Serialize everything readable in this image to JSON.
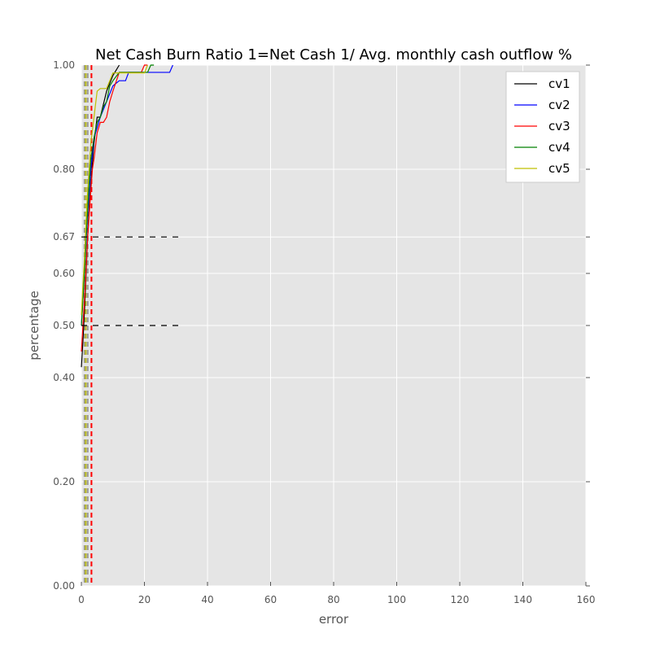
{
  "chart_data": {
    "type": "line",
    "title": "Net Cash Burn Ratio 1=Net Cash 1/ Avg. monthly cash outflow %",
    "xlabel": "error",
    "ylabel": "percentage",
    "xlim": [
      0,
      160
    ],
    "ylim": [
      0,
      1
    ],
    "xticks": [
      0,
      20,
      40,
      60,
      80,
      100,
      120,
      140,
      160
    ],
    "xtick_labels": [
      "0",
      "20",
      "40",
      "60",
      "80",
      "100",
      "120",
      "140",
      "160"
    ],
    "yticks": [
      0,
      0.2,
      0.4,
      0.5,
      0.6,
      0.67,
      0.8,
      1.0
    ],
    "ytick_labels": [
      "0.00",
      "0.20",
      "0.40",
      "0.50",
      "0.60",
      "0.67",
      "0.80",
      "1.00"
    ],
    "grid": true,
    "legend_position": "top-right",
    "reference_lines": [
      {
        "orientation": "horizontal",
        "y": 0.67,
        "x_range": [
          0,
          32
        ],
        "color": "#000000",
        "style": "dashed"
      },
      {
        "orientation": "horizontal",
        "y": 0.5,
        "x_range": [
          0,
          32
        ],
        "color": "#000000",
        "style": "dashed"
      },
      {
        "orientation": "vertical",
        "x": 1.0,
        "color": "#999999",
        "style": "dashed"
      },
      {
        "orientation": "vertical",
        "x": 1.4,
        "color": "#bcbd22",
        "style": "dashed"
      },
      {
        "orientation": "vertical",
        "x": 2.0,
        "color": "#999999",
        "style": "dashed"
      },
      {
        "orientation": "vertical",
        "x": 3.2,
        "color": "#ff0000",
        "style": "dashed"
      }
    ],
    "series": [
      {
        "name": "cv1",
        "color": "#000000",
        "x": [
          0,
          0.5,
          1,
          1.5,
          2,
          2.5,
          3,
          4,
          5,
          6,
          8,
          10,
          11,
          12
        ],
        "y": [
          0.42,
          0.47,
          0.53,
          0.6,
          0.67,
          0.73,
          0.77,
          0.85,
          0.9,
          0.9,
          0.95,
          0.98,
          0.99,
          1.0
        ]
      },
      {
        "name": "cv2",
        "color": "#0000ff",
        "x": [
          0,
          0.5,
          1,
          1.5,
          2,
          3,
          4,
          5,
          6,
          8,
          10,
          12,
          14,
          15,
          28,
          29
        ],
        "y": [
          0.5,
          0.55,
          0.6,
          0.66,
          0.72,
          0.8,
          0.86,
          0.88,
          0.9,
          0.93,
          0.96,
          0.97,
          0.97,
          0.986,
          0.986,
          1.0
        ]
      },
      {
        "name": "cv3",
        "color": "#ff0000",
        "x": [
          0,
          0.5,
          1,
          2,
          3,
          3.5,
          4,
          5,
          6,
          7,
          8,
          9,
          10,
          12,
          19,
          20,
          21
        ],
        "y": [
          0.45,
          0.5,
          0.55,
          0.67,
          0.76,
          0.8,
          0.82,
          0.87,
          0.89,
          0.89,
          0.9,
          0.93,
          0.95,
          0.986,
          0.986,
          1.0,
          1.0
        ]
      },
      {
        "name": "cv4",
        "color": "#008000",
        "x": [
          0,
          0.5,
          1,
          1.5,
          2,
          3,
          4,
          5,
          6,
          7,
          8,
          9,
          10,
          12,
          21,
          22,
          23
        ],
        "y": [
          0.5,
          0.55,
          0.6,
          0.67,
          0.73,
          0.82,
          0.86,
          0.89,
          0.9,
          0.92,
          0.93,
          0.96,
          0.97,
          0.986,
          0.986,
          1.0,
          1.0
        ]
      },
      {
        "name": "cv5",
        "color": "#bfbf00",
        "x": [
          0,
          0.5,
          1,
          1.5,
          2,
          3,
          4,
          5,
          6,
          8,
          10,
          12,
          20,
          21
        ],
        "y": [
          0.52,
          0.58,
          0.63,
          0.7,
          0.76,
          0.85,
          0.9,
          0.95,
          0.955,
          0.955,
          0.985,
          0.985,
          0.985,
          1.0
        ]
      }
    ]
  }
}
